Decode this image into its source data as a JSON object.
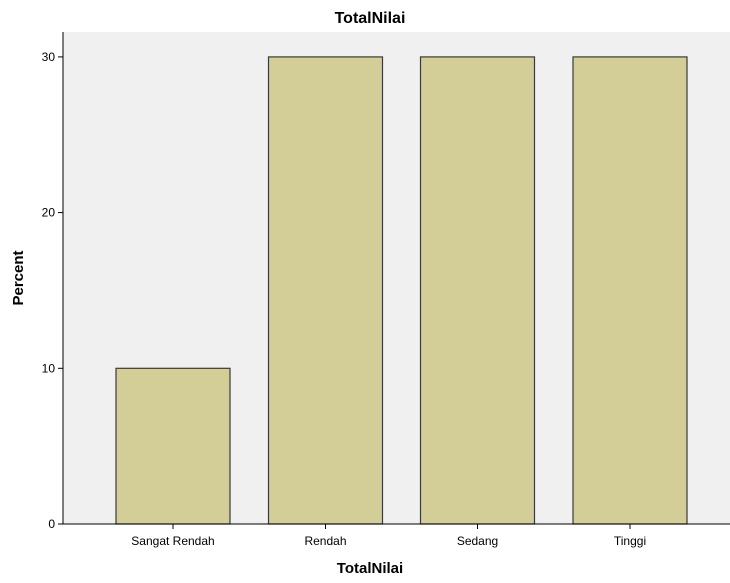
{
  "chart_data": {
    "type": "bar",
    "title": "TotalNilai",
    "xlabel": "TotalNilai",
    "ylabel": "Percent",
    "categories": [
      "Sangat Rendah",
      "Rendah",
      "Sedang",
      "Tinggi"
    ],
    "values": [
      10,
      30,
      30,
      30
    ],
    "ylim": [
      0,
      31.6
    ],
    "yticks": [
      0,
      10,
      20,
      30
    ],
    "grid": false,
    "colors": {
      "plot_background": "#f0f0f0",
      "bar_fill": "#d3ce97",
      "bar_stroke": "#3a3a3a",
      "axis": "#000000"
    }
  }
}
